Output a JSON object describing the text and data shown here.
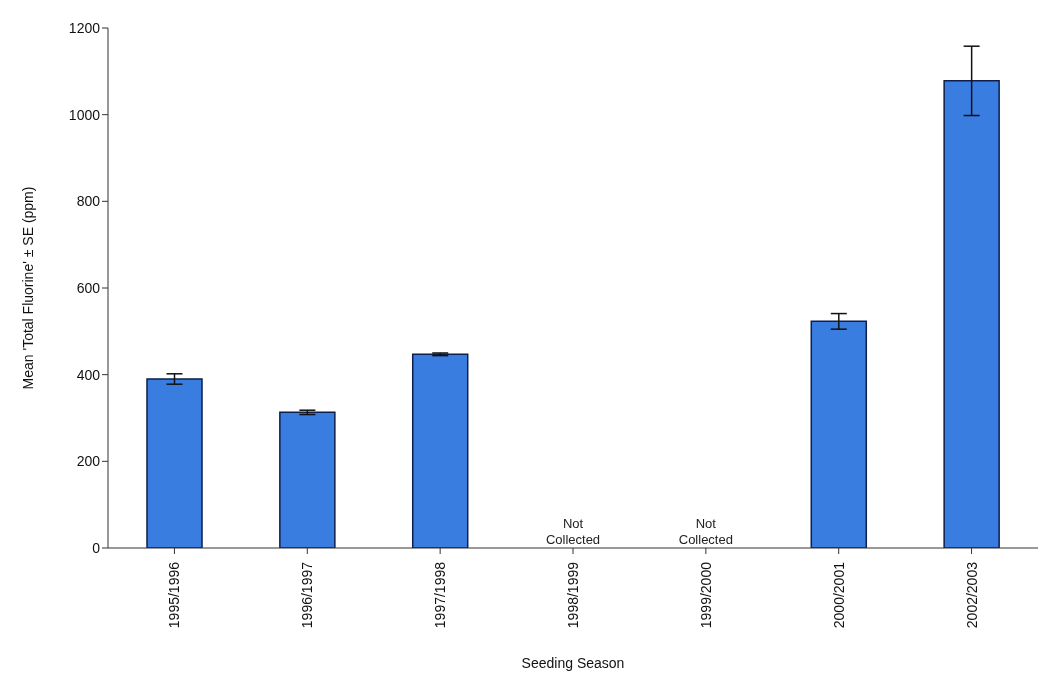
{
  "chart_data": {
    "type": "bar",
    "xlabel": "Seeding Season",
    "ylabel": "Mean 'Total Fluorine' ± SE (ppm)",
    "categories": [
      "1995/1996",
      "1996/1997",
      "1997/1998",
      "1998/1999",
      "1999/2000",
      "2000/2001",
      "2002/2003"
    ],
    "values": [
      390,
      313,
      447,
      null,
      null,
      523,
      1078
    ],
    "errors": [
      12,
      5,
      3,
      null,
      null,
      18,
      80
    ],
    "color": "#3a7de0",
    "ylim": [
      0,
      1200
    ],
    "yticks": [
      0,
      200,
      400,
      600,
      800,
      1000,
      1200
    ],
    "grid": false,
    "legend": false,
    "annotations": [
      "Not Collected",
      "Not Collected"
    ]
  }
}
